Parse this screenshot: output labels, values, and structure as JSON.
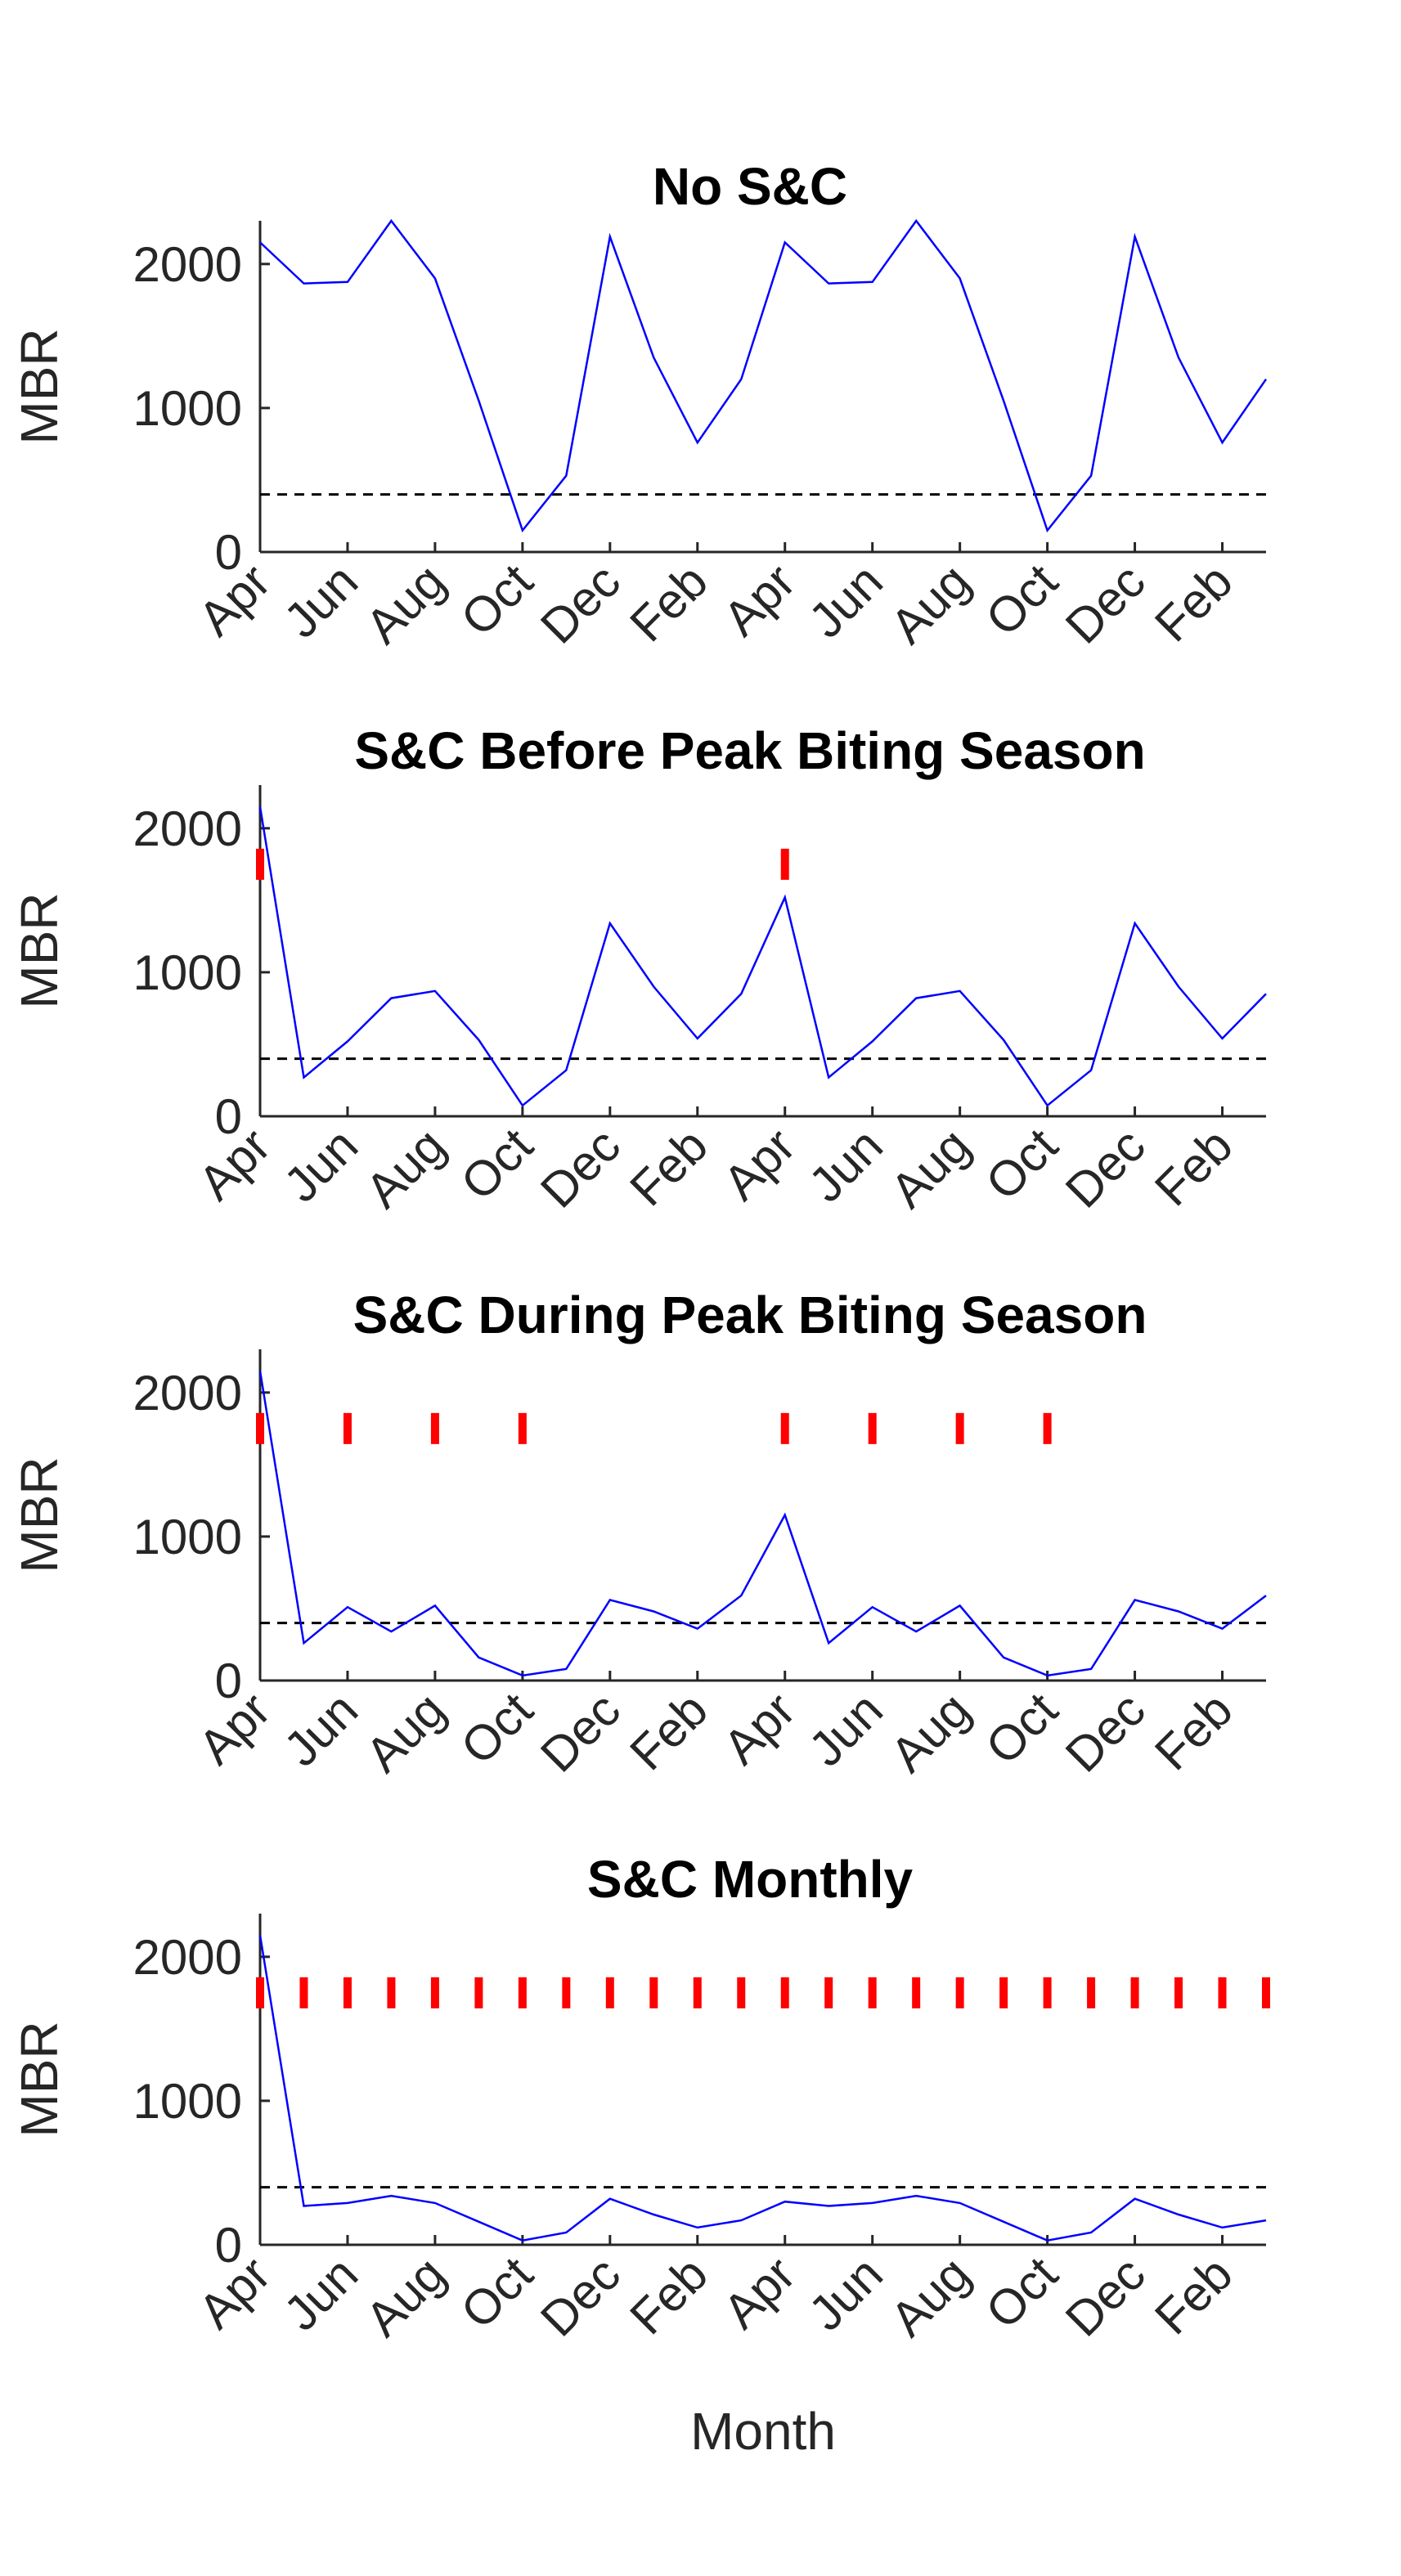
{
  "chart_data": [
    {
      "type": "line",
      "title": "No S&C",
      "xlabel": "",
      "ylabel": "MBR",
      "ylim": [
        0,
        2300
      ],
      "yticks": [
        0,
        1000,
        2000
      ],
      "x": [
        1,
        2,
        3,
        4,
        5,
        6,
        7,
        8,
        9,
        10,
        11,
        12,
        13,
        14,
        15,
        16,
        17,
        18,
        19,
        20,
        21,
        22,
        23,
        24
      ],
      "xtick_positions": [
        1,
        3,
        5,
        7,
        9,
        11,
        13,
        15,
        17,
        19,
        21,
        23
      ],
      "xtick_labels": [
        "Apr",
        "Jun",
        "Aug",
        "Oct",
        "Dec",
        "Feb",
        "Apr",
        "Jun",
        "Aug",
        "Oct",
        "Dec",
        "Feb"
      ],
      "series": [
        {
          "color": "#0000ff",
          "style": "solid",
          "values": [
            2150,
            1865,
            1875,
            2300,
            1900,
            1050,
            150,
            530,
            2190,
            1350,
            760,
            1200,
            2150,
            1865,
            1875,
            2300,
            1900,
            1050,
            150,
            530,
            2190,
            1350,
            760,
            1200
          ]
        }
      ],
      "threshold": {
        "value": 400,
        "color": "#000000",
        "style": "dashed"
      },
      "interventions": {
        "color": "#ff0000",
        "months": []
      },
      "grid": false
    },
    {
      "type": "line",
      "title": "S&C Before Peak Biting Season",
      "xlabel": "",
      "ylabel": "MBR",
      "ylim": [
        0,
        2300
      ],
      "yticks": [
        0,
        1000,
        2000
      ],
      "x": [
        1,
        2,
        3,
        4,
        5,
        6,
        7,
        8,
        9,
        10,
        11,
        12,
        13,
        14,
        15,
        16,
        17,
        18,
        19,
        20,
        21,
        22,
        23,
        24
      ],
      "xtick_positions": [
        1,
        3,
        5,
        7,
        9,
        11,
        13,
        15,
        17,
        19,
        21,
        23
      ],
      "xtick_labels": [
        "Apr",
        "Jun",
        "Aug",
        "Oct",
        "Dec",
        "Feb",
        "Apr",
        "Jun",
        "Aug",
        "Oct",
        "Dec",
        "Feb"
      ],
      "series": [
        {
          "color": "#0000ff",
          "style": "solid",
          "values": [
            2150,
            270,
            520,
            820,
            870,
            530,
            75,
            320,
            1340,
            900,
            540,
            850,
            1520,
            270,
            520,
            820,
            870,
            530,
            75,
            320,
            1340,
            900,
            540,
            850
          ]
        }
      ],
      "threshold": {
        "value": 400,
        "color": "#000000",
        "style": "dashed"
      },
      "interventions": {
        "color": "#ff0000",
        "months": [
          1,
          13
        ]
      },
      "grid": false
    },
    {
      "type": "line",
      "title": "S&C During Peak Biting Season",
      "xlabel": "",
      "ylabel": "MBR",
      "ylim": [
        0,
        2300
      ],
      "yticks": [
        0,
        1000,
        2000
      ],
      "x": [
        1,
        2,
        3,
        4,
        5,
        6,
        7,
        8,
        9,
        10,
        11,
        12,
        13,
        14,
        15,
        16,
        17,
        18,
        19,
        20,
        21,
        22,
        23,
        24
      ],
      "xtick_positions": [
        1,
        3,
        5,
        7,
        9,
        11,
        13,
        15,
        17,
        19,
        21,
        23
      ],
      "xtick_labels": [
        "Apr",
        "Jun",
        "Aug",
        "Oct",
        "Dec",
        "Feb",
        "Apr",
        "Jun",
        "Aug",
        "Oct",
        "Dec",
        "Feb"
      ],
      "series": [
        {
          "color": "#0000ff",
          "style": "solid",
          "values": [
            2150,
            260,
            510,
            340,
            520,
            160,
            35,
            80,
            560,
            480,
            360,
            590,
            1150,
            260,
            510,
            340,
            520,
            160,
            35,
            80,
            560,
            480,
            360,
            590
          ]
        }
      ],
      "threshold": {
        "value": 400,
        "color": "#000000",
        "style": "dashed"
      },
      "interventions": {
        "color": "#ff0000",
        "months": [
          1,
          3,
          5,
          7,
          13,
          15,
          17,
          19
        ]
      },
      "grid": false
    },
    {
      "type": "line",
      "title": "S&C Monthly",
      "xlabel": "Month",
      "ylabel": "MBR",
      "ylim": [
        0,
        2300
      ],
      "yticks": [
        0,
        1000,
        2000
      ],
      "x": [
        1,
        2,
        3,
        4,
        5,
        6,
        7,
        8,
        9,
        10,
        11,
        12,
        13,
        14,
        15,
        16,
        17,
        18,
        19,
        20,
        21,
        22,
        23,
        24
      ],
      "xtick_positions": [
        1,
        3,
        5,
        7,
        9,
        11,
        13,
        15,
        17,
        19,
        21,
        23
      ],
      "xtick_labels": [
        "Apr",
        "Jun",
        "Aug",
        "Oct",
        "Dec",
        "Feb",
        "Apr",
        "Jun",
        "Aug",
        "Oct",
        "Dec",
        "Feb"
      ],
      "series": [
        {
          "color": "#0000ff",
          "style": "solid",
          "values": [
            2150,
            270,
            290,
            340,
            290,
            160,
            30,
            85,
            320,
            210,
            120,
            170,
            300,
            270,
            290,
            340,
            290,
            160,
            30,
            85,
            320,
            210,
            120,
            170
          ]
        }
      ],
      "threshold": {
        "value": 400,
        "color": "#000000",
        "style": "dashed"
      },
      "interventions": {
        "color": "#ff0000",
        "months": [
          1,
          2,
          3,
          4,
          5,
          6,
          7,
          8,
          9,
          10,
          11,
          12,
          13,
          14,
          15,
          16,
          17,
          18,
          19,
          20,
          21,
          22,
          23,
          24
        ]
      },
      "grid": false
    }
  ]
}
